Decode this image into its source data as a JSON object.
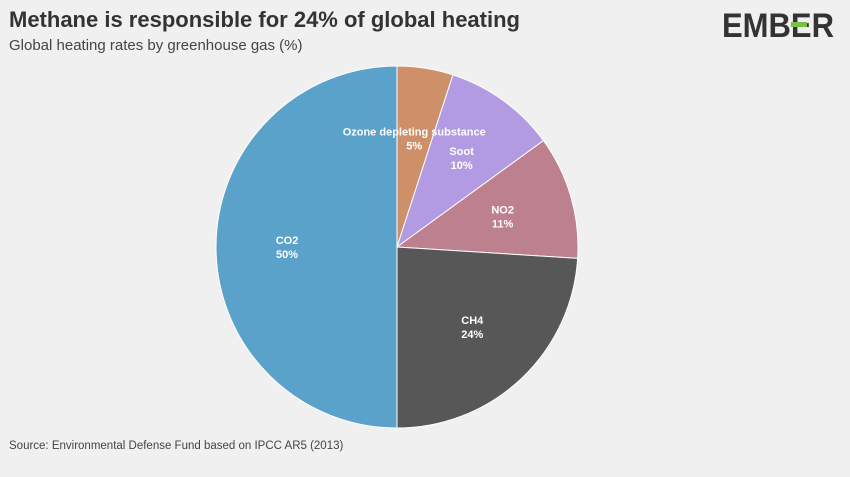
{
  "header": {
    "title": "Methane is responsible for 24% of global heating",
    "subtitle": "Global heating rates by greenhouse gas (%)"
  },
  "logo": {
    "text": "EMBER",
    "accent_color": "#7ac143",
    "text_color": "#333333"
  },
  "footer": {
    "source": "Source: Environmental Defense Fund based on IPCC AR5 (2013)"
  },
  "chart_data": {
    "type": "pie",
    "title": "Methane is responsible for 24% of global heating",
    "subtitle": "Global heating rates by greenhouse gas (%)",
    "start": "12 o'clock, clockwise",
    "slices": [
      {
        "label": "Ozone depleting substance",
        "value": 5,
        "display": "5%",
        "color": "#cd9068"
      },
      {
        "label": "Soot",
        "value": 10,
        "display": "10%",
        "color": "#b39be3"
      },
      {
        "label": "NO2",
        "value": 11,
        "display": "11%",
        "color": "#bd808e"
      },
      {
        "label": "CH4",
        "value": 24,
        "display": "24%",
        "color": "#575757"
      },
      {
        "label": "CO2",
        "value": 50,
        "display": "50%",
        "color": "#5ba2cb"
      }
    ]
  }
}
